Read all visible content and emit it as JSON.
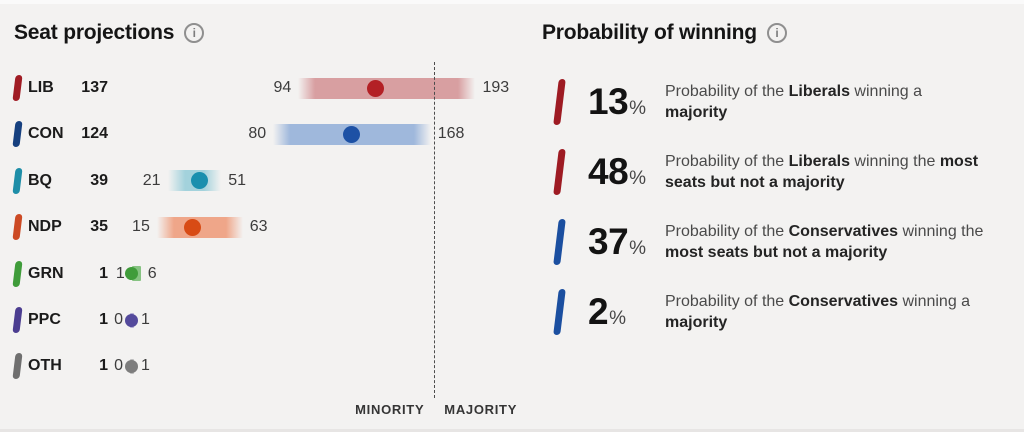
{
  "seat_panel": {
    "title": "Seat projections",
    "info_icon": "info-circle-icon",
    "minority_label": "MINORITY",
    "majority_label": "MAJORITY"
  },
  "prob_panel": {
    "title": "Probability of winning",
    "info_icon": "info-circle-icon",
    "items": [
      {
        "pct": "13",
        "pct_symbol": "%",
        "marker_color": "#9e1b23",
        "lines": [
          [
            {
              "t": "Probability of the "
            },
            {
              "t": "Liberals",
              "b": true
            },
            {
              "t": " winning a"
            }
          ],
          [
            {
              "t": "majority",
              "b": true
            }
          ]
        ]
      },
      {
        "pct": "48",
        "pct_symbol": "%",
        "marker_color": "#9e1b23",
        "lines": [
          [
            {
              "t": "Probability of the "
            },
            {
              "t": "Liberals",
              "b": true
            },
            {
              "t": " winning the "
            },
            {
              "t": "most",
              "b": true
            }
          ],
          [
            {
              "t": "seats but not a majority",
              "b": true
            }
          ]
        ]
      },
      {
        "pct": "37",
        "pct_symbol": "%",
        "marker_color": "#1b4fa0",
        "lines": [
          [
            {
              "t": "Probability of the "
            },
            {
              "t": "Conservatives",
              "b": true
            },
            {
              "t": " winning the"
            }
          ],
          [
            {
              "t": "most seats but not a majority",
              "b": true
            }
          ]
        ]
      },
      {
        "pct": "2",
        "pct_symbol": "%",
        "marker_color": "#1b4fa0",
        "lines": [
          [
            {
              "t": "Probability of the "
            },
            {
              "t": "Conservatives",
              "b": true
            },
            {
              "t": " winning a"
            }
          ],
          [
            {
              "t": "majority",
              "b": true
            }
          ]
        ]
      }
    ]
  },
  "chart_data": {
    "type": "range-dot",
    "title": "Seat projections",
    "x_unit": "seats",
    "majority_threshold": 170,
    "axis_labels": {
      "left_of_threshold": "MINORITY",
      "right_of_threshold": "MAJORITY"
    },
    "parties": [
      {
        "code": "LIB",
        "projection": 137,
        "low": 94,
        "high": 193,
        "marker_color": "#a01c24",
        "bar_color": "#d89fa1",
        "dot_color": "#b32025"
      },
      {
        "code": "CON",
        "projection": 124,
        "low": 80,
        "high": 168,
        "marker_color": "#16407f",
        "bar_color": "#9fb8dc",
        "dot_color": "#1d51a5"
      },
      {
        "code": "BQ",
        "projection": 39,
        "low": 21,
        "high": 51,
        "marker_color": "#1e8ea8",
        "bar_color": "#a3d2dc",
        "dot_color": "#1a8fae"
      },
      {
        "code": "NDP",
        "projection": 35,
        "low": 15,
        "high": 63,
        "marker_color": "#cc4a24",
        "bar_color": "#efa689",
        "dot_color": "#d84b15"
      },
      {
        "code": "GRN",
        "projection": 1,
        "low": 1,
        "high": 6,
        "marker_color": "#3f9c3a",
        "bar_color": "#86c382",
        "dot_color": "#3f9c3a"
      },
      {
        "code": "PPC",
        "projection": 1,
        "low": 0,
        "high": 1,
        "marker_color": "#4b3d90",
        "bar_color": "#b3aed4",
        "dot_color": "#544a9c"
      },
      {
        "code": "OTH",
        "projection": 1,
        "low": 0,
        "high": 1,
        "marker_color": "#6f6f6f",
        "bar_color": "#bdbdbd",
        "dot_color": "#7d7d7d"
      }
    ]
  },
  "colors": {
    "background": "#f3f2f1",
    "threshold_line": "#4c4c4c",
    "liberal_red": "#9e1b23",
    "conservative_blue": "#1b4fa0"
  }
}
